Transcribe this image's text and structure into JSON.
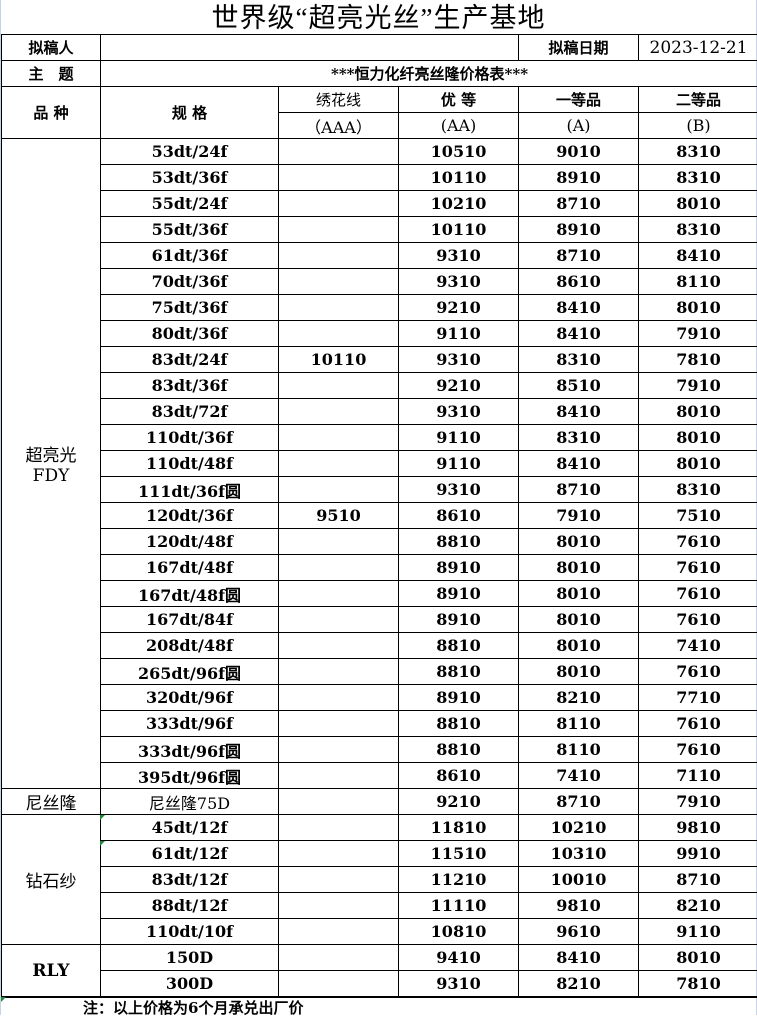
{
  "title": "世界级“超亮光丝”生产基地",
  "drafter_label": "拟稿人",
  "drafter_value": "",
  "date_label": "拟稿日期",
  "date_value": "2023-12-21",
  "subject_label": "主　题",
  "subject_value": "***恒力化纤亮丝隆价格表***",
  "headers": {
    "variety": "品 种",
    "spec": "规 格",
    "c1": "绣花线",
    "c1b": "（AAA）",
    "c2": "优 等",
    "c2b": "(AA)",
    "c3": "一等品",
    "c3b": "(A)",
    "c4": "二等品",
    "c4b": "(B)"
  },
  "groups": [
    {
      "name": "超亮光\nFDY",
      "rows": [
        [
          "53dt/24f",
          "",
          "10510",
          "9010",
          "8310"
        ],
        [
          "53dt/36f",
          "",
          "10110",
          "8910",
          "8310"
        ],
        [
          "55dt/24f",
          "",
          "10210",
          "8710",
          "8010"
        ],
        [
          "55dt/36f",
          "",
          "10110",
          "8910",
          "8310"
        ],
        [
          "61dt/36f",
          "",
          "9310",
          "8710",
          "8410"
        ],
        [
          "70dt/36f",
          "",
          "9310",
          "8610",
          "8110"
        ],
        [
          "75dt/36f",
          "",
          "9210",
          "8410",
          "8010"
        ],
        [
          "80dt/36f",
          "",
          "9110",
          "8410",
          "7910"
        ],
        [
          "83dt/24f",
          "10110",
          "9310",
          "8310",
          "7810"
        ],
        [
          "83dt/36f",
          "",
          "9210",
          "8510",
          "7910"
        ],
        [
          "83dt/72f",
          "",
          "9310",
          "8410",
          "8010"
        ],
        [
          "110dt/36f",
          "",
          "9110",
          "8310",
          "8010"
        ],
        [
          "110dt/48f",
          "",
          "9110",
          "8410",
          "8010"
        ],
        [
          "111dt/36f圆",
          "",
          "9310",
          "8710",
          "8310"
        ],
        [
          "120dt/36f",
          "9510",
          "8610",
          "7910",
          "7510"
        ],
        [
          "120dt/48f",
          "",
          "8810",
          "8010",
          "7610"
        ],
        [
          "167dt/48f",
          "",
          "8910",
          "8010",
          "7610"
        ],
        [
          "167dt/48f圆",
          "",
          "8910",
          "8010",
          "7610"
        ],
        [
          "167dt/84f",
          "",
          "8910",
          "8010",
          "7610"
        ],
        [
          "208dt/48f",
          "",
          "8810",
          "8010",
          "7410"
        ],
        [
          "265dt/96f圆",
          "",
          "8810",
          "8010",
          "7610"
        ],
        [
          "320dt/96f",
          "",
          "8910",
          "8210",
          "7710"
        ],
        [
          "333dt/96f",
          "",
          "8810",
          "8110",
          "7610"
        ],
        [
          "333dt/96f圆",
          "",
          "8810",
          "8110",
          "7610"
        ],
        [
          "395dt/96f圆",
          "",
          "8610",
          "7410",
          "7110"
        ]
      ]
    },
    {
      "name": "尼丝隆",
      "rows": [
        [
          "尼丝隆75D",
          "",
          "9210",
          "8710",
          "7910"
        ]
      ]
    },
    {
      "name": "钻石纱",
      "rows": [
        [
          "45dt/12f",
          "",
          "11810",
          "10210",
          "9810"
        ],
        [
          "61dt/12f",
          "",
          "11510",
          "10310",
          "9910"
        ],
        [
          "83dt/12f",
          "",
          "11210",
          "10010",
          "8710"
        ],
        [
          "88dt/12f",
          "",
          "11110",
          "9810",
          "8210"
        ],
        [
          "110dt/10f",
          "",
          "10810",
          "9610",
          "9110"
        ]
      ]
    },
    {
      "name": "RLY",
      "rows": [
        [
          "150D",
          "",
          "9410",
          "8410",
          "8010"
        ],
        [
          "300D",
          "",
          "9310",
          "8210",
          "7810"
        ]
      ]
    }
  ],
  "footnote": "注：以上价格为6个月承兑出厂价"
}
